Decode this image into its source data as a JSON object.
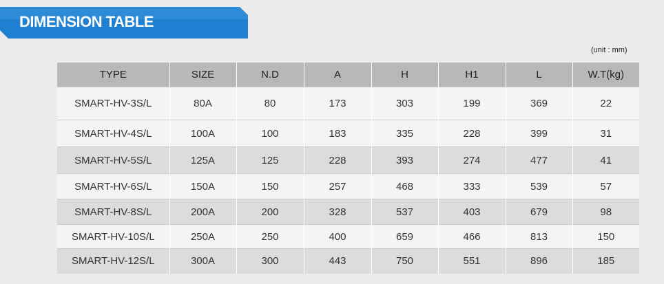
{
  "header": {
    "title": "DIMENSION TABLE",
    "unit": "(unit : mm)"
  },
  "table": {
    "columns": [
      "TYPE",
      "SIZE",
      "N.D",
      "A",
      "H",
      "H1",
      "L",
      "W.T(kg)"
    ],
    "rows": [
      [
        "SMART-HV-3S/L",
        "80A",
        80,
        173,
        303,
        199,
        369,
        22
      ],
      [
        "SMART-HV-4S/L",
        "100A",
        100,
        183,
        335,
        228,
        399,
        31
      ],
      [
        "SMART-HV-5S/L",
        "125A",
        125,
        228,
        393,
        274,
        477,
        41
      ],
      [
        "SMART-HV-6S/L",
        "150A",
        150,
        257,
        468,
        333,
        539,
        57
      ],
      [
        "SMART-HV-8S/L",
        "200A",
        200,
        328,
        537,
        403,
        679,
        98
      ],
      [
        "SMART-HV-10S/L",
        "250A",
        250,
        400,
        659,
        466,
        813,
        150
      ],
      [
        "SMART-HV-12S/L",
        "300A",
        300,
        443,
        750,
        551,
        896,
        185
      ]
    ]
  }
}
